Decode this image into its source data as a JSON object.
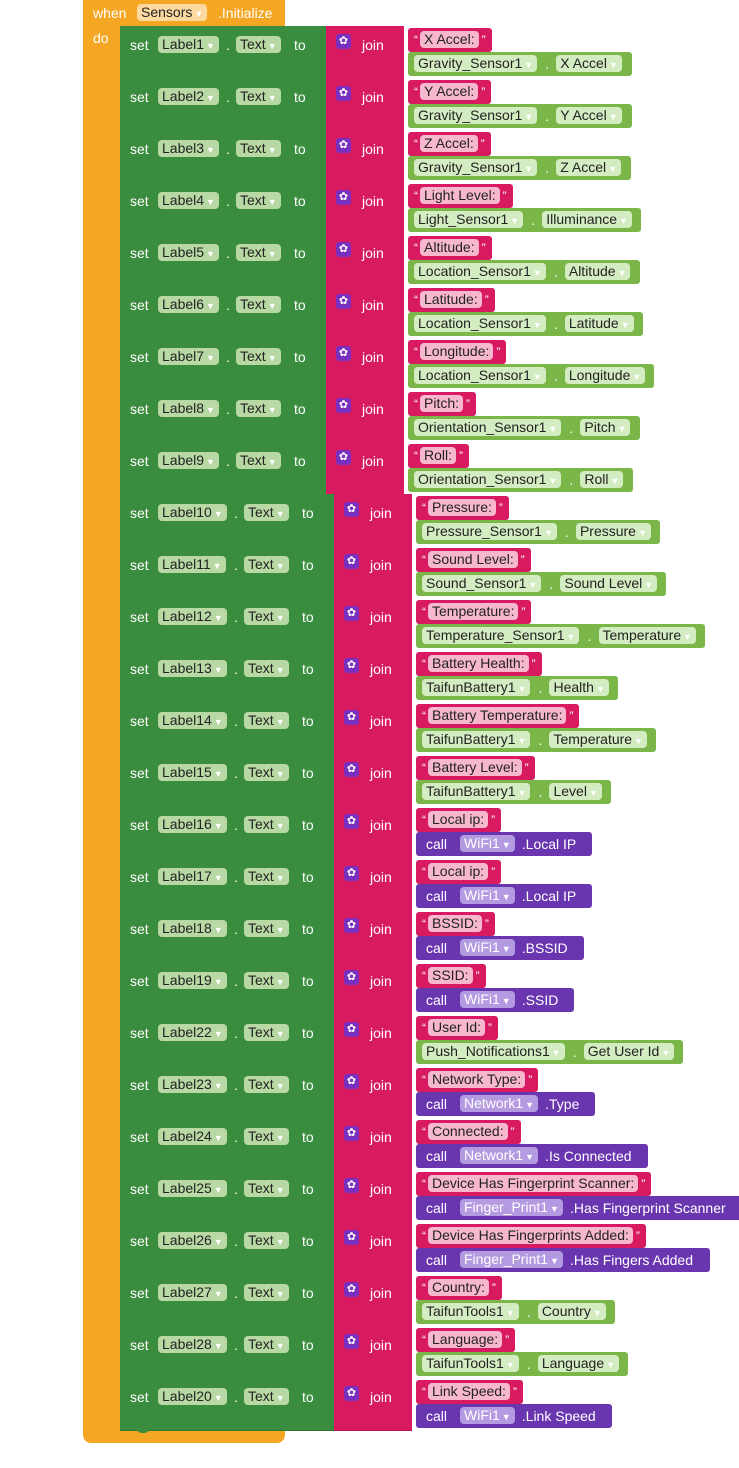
{
  "event": {
    "when_label": "when",
    "component": "Sensors",
    "event_name": ".Initialize",
    "do_label": "do"
  },
  "keywords": {
    "set": "set",
    "to": "to",
    "join": "join",
    "call": "call",
    "dot": "."
  },
  "rows": [
    {
      "label": "Label1",
      "prop": "Text",
      "string": "X Accel:",
      "type": "getter",
      "comp": "Gravity_Sensor1",
      "member": "X Accel"
    },
    {
      "label": "Label2",
      "prop": "Text",
      "string": "Y Accel:",
      "type": "getter",
      "comp": "Gravity_Sensor1",
      "member": "Y Accel"
    },
    {
      "label": "Label3",
      "prop": "Text",
      "string": "Z Accel:",
      "type": "getter",
      "comp": "Gravity_Sensor1",
      "member": "Z Accel"
    },
    {
      "label": "Label4",
      "prop": "Text",
      "string": "Light Level:",
      "type": "getter",
      "comp": "Light_Sensor1",
      "member": "Illuminance"
    },
    {
      "label": "Label5",
      "prop": "Text",
      "string": "Altitude:",
      "type": "getter",
      "comp": "Location_Sensor1",
      "member": "Altitude"
    },
    {
      "label": "Label6",
      "prop": "Text",
      "string": "Latitude:",
      "type": "getter",
      "comp": "Location_Sensor1",
      "member": "Latitude"
    },
    {
      "label": "Label7",
      "prop": "Text",
      "string": "Longitude:",
      "type": "getter",
      "comp": "Location_Sensor1",
      "member": "Longitude"
    },
    {
      "label": "Label8",
      "prop": "Text",
      "string": "Pitch:",
      "type": "getter",
      "comp": "Orientation_Sensor1",
      "member": "Pitch"
    },
    {
      "label": "Label9",
      "prop": "Text",
      "string": "Roll:",
      "type": "getter",
      "comp": "Orientation_Sensor1",
      "member": "Roll"
    },
    {
      "label": "Label10",
      "prop": "Text",
      "string": "Pressure:",
      "type": "getter",
      "comp": "Pressure_Sensor1",
      "member": "Pressure"
    },
    {
      "label": "Label11",
      "prop": "Text",
      "string": "Sound Level:",
      "type": "getter",
      "comp": "Sound_Sensor1",
      "member": "Sound Level"
    },
    {
      "label": "Label12",
      "prop": "Text",
      "string": "Temperature:",
      "type": "getter",
      "comp": "Temperature_Sensor1",
      "member": "Temperature"
    },
    {
      "label": "Label13",
      "prop": "Text",
      "string": "Battery Health:",
      "type": "getter",
      "comp": "TaifunBattery1",
      "member": "Health"
    },
    {
      "label": "Label14",
      "prop": "Text",
      "string": "Battery Temperature:",
      "type": "getter",
      "comp": "TaifunBattery1",
      "member": "Temperature"
    },
    {
      "label": "Label15",
      "prop": "Text",
      "string": "Battery Level:",
      "type": "getter",
      "comp": "TaifunBattery1",
      "member": "Level"
    },
    {
      "label": "Label16",
      "prop": "Text",
      "string": "Local ip:",
      "type": "call",
      "comp": "WiFi1",
      "member": ".Local IP"
    },
    {
      "label": "Label17",
      "prop": "Text",
      "string": "Local ip:",
      "type": "call",
      "comp": "WiFi1",
      "member": ".Local IP"
    },
    {
      "label": "Label18",
      "prop": "Text",
      "string": "BSSID:",
      "type": "call",
      "comp": "WiFi1",
      "member": ".BSSID"
    },
    {
      "label": "Label19",
      "prop": "Text",
      "string": "SSID:",
      "type": "call",
      "comp": "WiFi1",
      "member": ".SSID"
    },
    {
      "label": "Label22",
      "prop": "Text",
      "string": "User Id:",
      "type": "getter",
      "comp": "Push_Notifications1",
      "member": "Get User Id"
    },
    {
      "label": "Label23",
      "prop": "Text",
      "string": "Network Type:",
      "type": "call",
      "comp": "Network1",
      "member": ".Type"
    },
    {
      "label": "Label24",
      "prop": "Text",
      "string": "Connected:",
      "type": "call",
      "comp": "Network1",
      "member": ".Is Connected"
    },
    {
      "label": "Label25",
      "prop": "Text",
      "string": "Device Has Fingerprint Scanner:",
      "type": "call",
      "comp": "Finger_Print1",
      "member": ".Has Fingerprint Scanner"
    },
    {
      "label": "Label26",
      "prop": "Text",
      "string": "Device Has Fingerprints Added:",
      "type": "call",
      "comp": "Finger_Print1",
      "member": ".Has Fingers Added"
    },
    {
      "label": "Label27",
      "prop": "Text",
      "string": "Country:",
      "type": "getter",
      "comp": "TaifunTools1",
      "member": "Country"
    },
    {
      "label": "Label28",
      "prop": "Text",
      "string": "Language:",
      "type": "getter",
      "comp": "TaifunTools1",
      "member": "Language"
    },
    {
      "label": "Label20",
      "prop": "Text",
      "string": "Link Speed:",
      "type": "call",
      "comp": "WiFi1",
      "member": ".Link Speed"
    }
  ],
  "colors": {
    "event": "#f5a623",
    "set": "#3a8c3f",
    "text": "#d81b60",
    "getter": "#7ab648",
    "call": "#6a36b0"
  }
}
